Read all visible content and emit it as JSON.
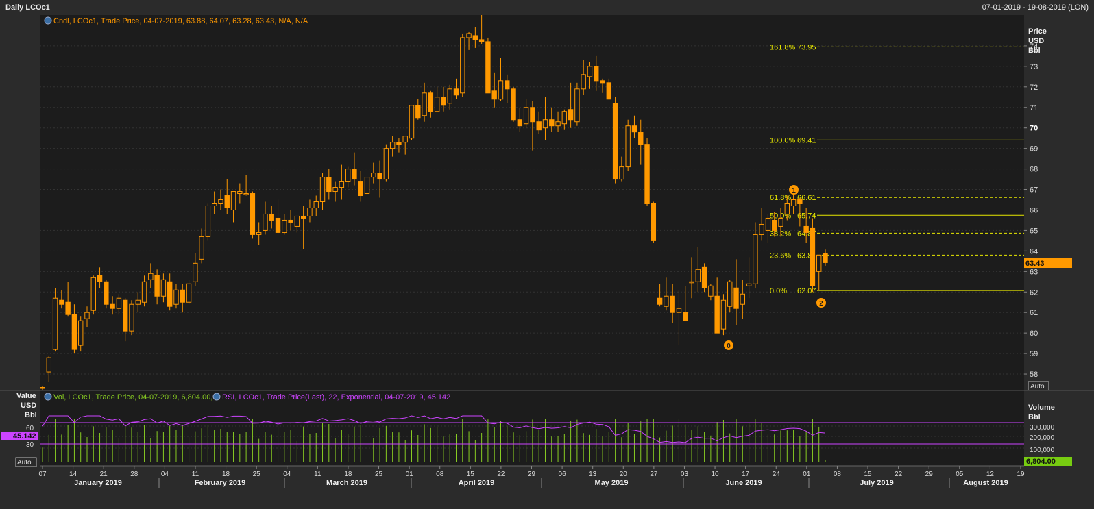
{
  "window": {
    "title": "Daily LCOc1",
    "date_range": "07-01-2019 - 19-08-2019 (LON)"
  },
  "price_panel": {
    "legend": "Cndl, LCOc1, Trade Price, 04-07-2019, 63.88, 64.07, 63.28, 63.43, N/A, N/A",
    "axis_title": [
      "Price",
      "USD",
      "Bbl"
    ],
    "auto_label": "Auto",
    "last_price_label": "63.43",
    "colors": {
      "candle": "#ff9900",
      "fib": "#e6e600",
      "background": "#1c1c1c"
    }
  },
  "lower_panel": {
    "legend_vol": "Vol, LCOc1, Trade Price, 04-07-2019, 6,804.00,",
    "legend_rsi": "RSI, LCOc1, Trade Price(Last), 22, Exponential, 04-07-2019, 45.142",
    "left_axis_title": [
      "Value",
      "USD",
      "Bbl"
    ],
    "right_axis_title": [
      "Volume",
      "Bbl"
    ],
    "rsi_value_label": "45.142",
    "vol_value_label": "6,804.00",
    "auto_label": "Auto",
    "colors": {
      "rsi": "#cc44ff",
      "volume": "#88cc22"
    }
  },
  "x_axis": {
    "day_ticks": [
      "07",
      "14",
      "21",
      "28",
      "04",
      "11",
      "18",
      "25",
      "04",
      "11",
      "18",
      "25",
      "01",
      "08",
      "15",
      "22",
      "29",
      "06",
      "13",
      "20",
      "27",
      "03",
      "10",
      "17",
      "24",
      "01",
      "08",
      "15",
      "22",
      "29",
      "05",
      "12",
      "19"
    ],
    "months": [
      "January 2019",
      "February 2019",
      "March 2019",
      "April 2019",
      "May 2019",
      "June 2019",
      "July 2019",
      "August 2019"
    ]
  },
  "fibonacci": [
    {
      "pct": "161.8%",
      "value": "73.95"
    },
    {
      "pct": "100.0%",
      "value": "69.41"
    },
    {
      "pct": "61.8%",
      "value": "66.61"
    },
    {
      "pct": "50.0%",
      "value": "65.74"
    },
    {
      "pct": "38.2%",
      "value": "64.87"
    },
    {
      "pct": "23.6%",
      "value": "63.8"
    },
    {
      "pct": "0.0%",
      "value": "62.07"
    }
  ],
  "wave_labels": [
    "0",
    "1",
    "2"
  ],
  "chart_data": {
    "type": "candlestick",
    "title": "Daily LCOc1",
    "ylabel": "Price USD Bbl",
    "ylim": [
      57.2,
      75.5
    ],
    "yticks": [
      58,
      59,
      60,
      61,
      62,
      63,
      64,
      65,
      66,
      67,
      68,
      69,
      70,
      71,
      72,
      73,
      74
    ],
    "candles_ohlc": [
      [
        57.3,
        57.4,
        57.2,
        57.35
      ],
      [
        58.1,
        58.9,
        57.6,
        58.8
      ],
      [
        59.2,
        62.2,
        59.1,
        61.7
      ],
      [
        61.6,
        62.1,
        61.2,
        61.4
      ],
      [
        61.5,
        62.5,
        60.8,
        60.9
      ],
      [
        60.9,
        61.4,
        59.0,
        59.2
      ],
      [
        59.4,
        60.8,
        59.1,
        60.6
      ],
      [
        60.7,
        61.3,
        60.3,
        61.0
      ],
      [
        61.1,
        62.8,
        60.9,
        62.7
      ],
      [
        62.8,
        63.2,
        62.2,
        62.5
      ],
      [
        62.5,
        62.6,
        61.2,
        61.4
      ],
      [
        61.4,
        61.8,
        60.9,
        61.2
      ],
      [
        61.2,
        61.9,
        60.9,
        61.7
      ],
      [
        61.6,
        61.7,
        59.6,
        60.1
      ],
      [
        60.1,
        61.6,
        59.9,
        61.4
      ],
      [
        61.4,
        62.0,
        61.0,
        61.6
      ],
      [
        61.5,
        62.8,
        61.3,
        62.5
      ],
      [
        62.6,
        63.4,
        62.2,
        62.9
      ],
      [
        62.8,
        63.1,
        61.4,
        61.8
      ],
      [
        61.8,
        62.9,
        61.5,
        62.6
      ],
      [
        62.5,
        62.9,
        61.1,
        61.3
      ],
      [
        61.4,
        62.4,
        61.2,
        62.1
      ],
      [
        62.1,
        62.4,
        61.0,
        61.5
      ],
      [
        61.5,
        62.6,
        61.4,
        62.4
      ],
      [
        62.5,
        63.9,
        62.3,
        63.4
      ],
      [
        63.6,
        65.1,
        63.4,
        64.7
      ],
      [
        64.7,
        66.3,
        64.5,
        66.2
      ],
      [
        66.2,
        66.9,
        65.8,
        66.3
      ],
      [
        66.3,
        67.0,
        66.0,
        66.5
      ],
      [
        66.7,
        67.5,
        65.8,
        66.1
      ],
      [
        66.0,
        66.9,
        65.4,
        66.9
      ],
      [
        66.8,
        67.3,
        66.3,
        66.9
      ],
      [
        66.8,
        67.7,
        66.7,
        66.8
      ],
      [
        66.8,
        66.9,
        64.6,
        64.8
      ],
      [
        64.8,
        65.4,
        64.3,
        64.9
      ],
      [
        65.0,
        66.4,
        64.8,
        65.8
      ],
      [
        65.8,
        66.2,
        65.1,
        65.5
      ],
      [
        65.6,
        66.5,
        64.8,
        64.9
      ],
      [
        64.9,
        65.8,
        64.8,
        65.5
      ],
      [
        65.5,
        66.0,
        65.0,
        65.4
      ],
      [
        65.2,
        65.7,
        64.9,
        65.7
      ],
      [
        65.7,
        66.2,
        64.1,
        65.6
      ],
      [
        65.7,
        66.5,
        65.4,
        66.1
      ],
      [
        66.1,
        66.7,
        65.7,
        66.4
      ],
      [
        66.4,
        67.8,
        66.0,
        67.6
      ],
      [
        67.6,
        68.0,
        66.5,
        66.9
      ],
      [
        66.9,
        67.4,
        66.4,
        67.1
      ],
      [
        67.1,
        68.2,
        66.5,
        67.4
      ],
      [
        67.4,
        68.1,
        67.1,
        68.0
      ],
      [
        68.0,
        68.8,
        67.2,
        67.5
      ],
      [
        67.4,
        67.9,
        66.4,
        66.7
      ],
      [
        66.8,
        67.9,
        66.6,
        67.6
      ],
      [
        67.6,
        68.3,
        67.3,
        67.8
      ],
      [
        67.8,
        68.4,
        66.6,
        67.5
      ],
      [
        67.5,
        69.2,
        67.4,
        69.0
      ],
      [
        69.0,
        69.6,
        68.6,
        69.3
      ],
      [
        69.3,
        69.5,
        68.8,
        69.2
      ],
      [
        69.3,
        69.6,
        68.7,
        69.6
      ],
      [
        69.5,
        71.1,
        69.4,
        71.1
      ],
      [
        71.1,
        71.4,
        70.4,
        70.5
      ],
      [
        70.6,
        72.2,
        70.3,
        71.7
      ],
      [
        71.7,
        71.8,
        70.5,
        70.8
      ],
      [
        70.8,
        72.0,
        70.8,
        71.5
      ],
      [
        71.5,
        72.0,
        70.8,
        71.1
      ],
      [
        71.2,
        72.1,
        70.9,
        71.9
      ],
      [
        71.9,
        72.4,
        71.4,
        71.6
      ],
      [
        71.7,
        74.6,
        71.5,
        74.4
      ],
      [
        74.4,
        74.7,
        73.8,
        74.6
      ],
      [
        74.5,
        74.9,
        73.9,
        74.3
      ],
      [
        74.3,
        75.6,
        74.1,
        74.2
      ],
      [
        74.2,
        74.4,
        71.7,
        71.7
      ],
      [
        71.8,
        72.7,
        71.0,
        71.4
      ],
      [
        71.4,
        73.4,
        71.3,
        72.3
      ],
      [
        72.3,
        72.6,
        71.2,
        71.9
      ],
      [
        71.9,
        72.0,
        70.3,
        70.4
      ],
      [
        70.4,
        71.0,
        69.8,
        70.1
      ],
      [
        70.2,
        71.4,
        70.0,
        71.0
      ],
      [
        71.0,
        71.3,
        68.9,
        70.3
      ],
      [
        70.3,
        70.8,
        69.7,
        69.9
      ],
      [
        70.0,
        71.5,
        69.4,
        70.4
      ],
      [
        70.4,
        71.0,
        69.8,
        70.1
      ],
      [
        70.1,
        70.8,
        69.8,
        70.3
      ],
      [
        70.2,
        70.9,
        69.9,
        70.8
      ],
      [
        70.9,
        72.2,
        70.0,
        70.4
      ],
      [
        70.3,
        72.2,
        70.1,
        71.9
      ],
      [
        71.9,
        73.3,
        71.6,
        72.6
      ],
      [
        72.5,
        73.2,
        71.9,
        73.0
      ],
      [
        73.0,
        73.5,
        71.8,
        72.3
      ],
      [
        72.3,
        72.4,
        71.7,
        72.2
      ],
      [
        72.2,
        72.4,
        71.4,
        71.4
      ],
      [
        71.2,
        71.5,
        67.3,
        67.5
      ],
      [
        67.5,
        68.6,
        67.4,
        68.1
      ],
      [
        68.1,
        70.4,
        67.9,
        70.1
      ],
      [
        70.1,
        70.6,
        69.5,
        69.8
      ],
      [
        69.8,
        70.4,
        68.2,
        69.2
      ],
      [
        69.2,
        69.5,
        66.2,
        66.3
      ],
      [
        66.3,
        66.4,
        64.4,
        64.5
      ],
      [
        61.7,
        62.4,
        61.3,
        61.4
      ],
      [
        61.3,
        62.7,
        61.1,
        61.8
      ],
      [
        61.8,
        62.4,
        60.5,
        61.0
      ],
      [
        61.0,
        62.1,
        59.4,
        61.2
      ],
      [
        61.0,
        62.3,
        60.7,
        60.6
      ],
      [
        62.5,
        63.7,
        61.7,
        62.5
      ],
      [
        62.5,
        64.2,
        62.0,
        63.1
      ],
      [
        63.2,
        63.4,
        62.0,
        62.2
      ],
      [
        61.8,
        62.4,
        61.6,
        62.3
      ],
      [
        61.8,
        62.7,
        60.7,
        60.0
      ],
      [
        60.2,
        61.9,
        59.9,
        61.6
      ],
      [
        61.3,
        62.6,
        61.0,
        62.5
      ],
      [
        62.2,
        63.6,
        60.4,
        61.2
      ],
      [
        61.4,
        62.6,
        60.7,
        61.9
      ],
      [
        62.3,
        63.7,
        61.7,
        62.4
      ],
      [
        62.4,
        65.4,
        62.2,
        64.8
      ],
      [
        64.8,
        66.1,
        64.5,
        65.3
      ],
      [
        65.0,
        65.8,
        64.4,
        65.6
      ],
      [
        65.5,
        65.9,
        64.7,
        65.0
      ],
      [
        65.2,
        66.1,
        64.7,
        65.6
      ],
      [
        65.8,
        66.7,
        65.5,
        66.3
      ],
      [
        66.2,
        66.8,
        65.8,
        66.5
      ],
      [
        66.5,
        66.6,
        65.2,
        66.3
      ],
      [
        65.2,
        66.1,
        64.4,
        64.9
      ],
      [
        65.1,
        65.6,
        62.0,
        62.3
      ],
      [
        63.0,
        63.8,
        62.1,
        63.8
      ],
      [
        63.88,
        64.07,
        63.28,
        63.43
      ]
    ],
    "rsi_levels": [
      60,
      30
    ],
    "rsi_last": 45.142,
    "volume_last": 6804.0,
    "volume_ticks": [
      "300,000",
      "200,000",
      "100,000"
    ],
    "rsi_ticks": [
      "60",
      "30"
    ]
  }
}
